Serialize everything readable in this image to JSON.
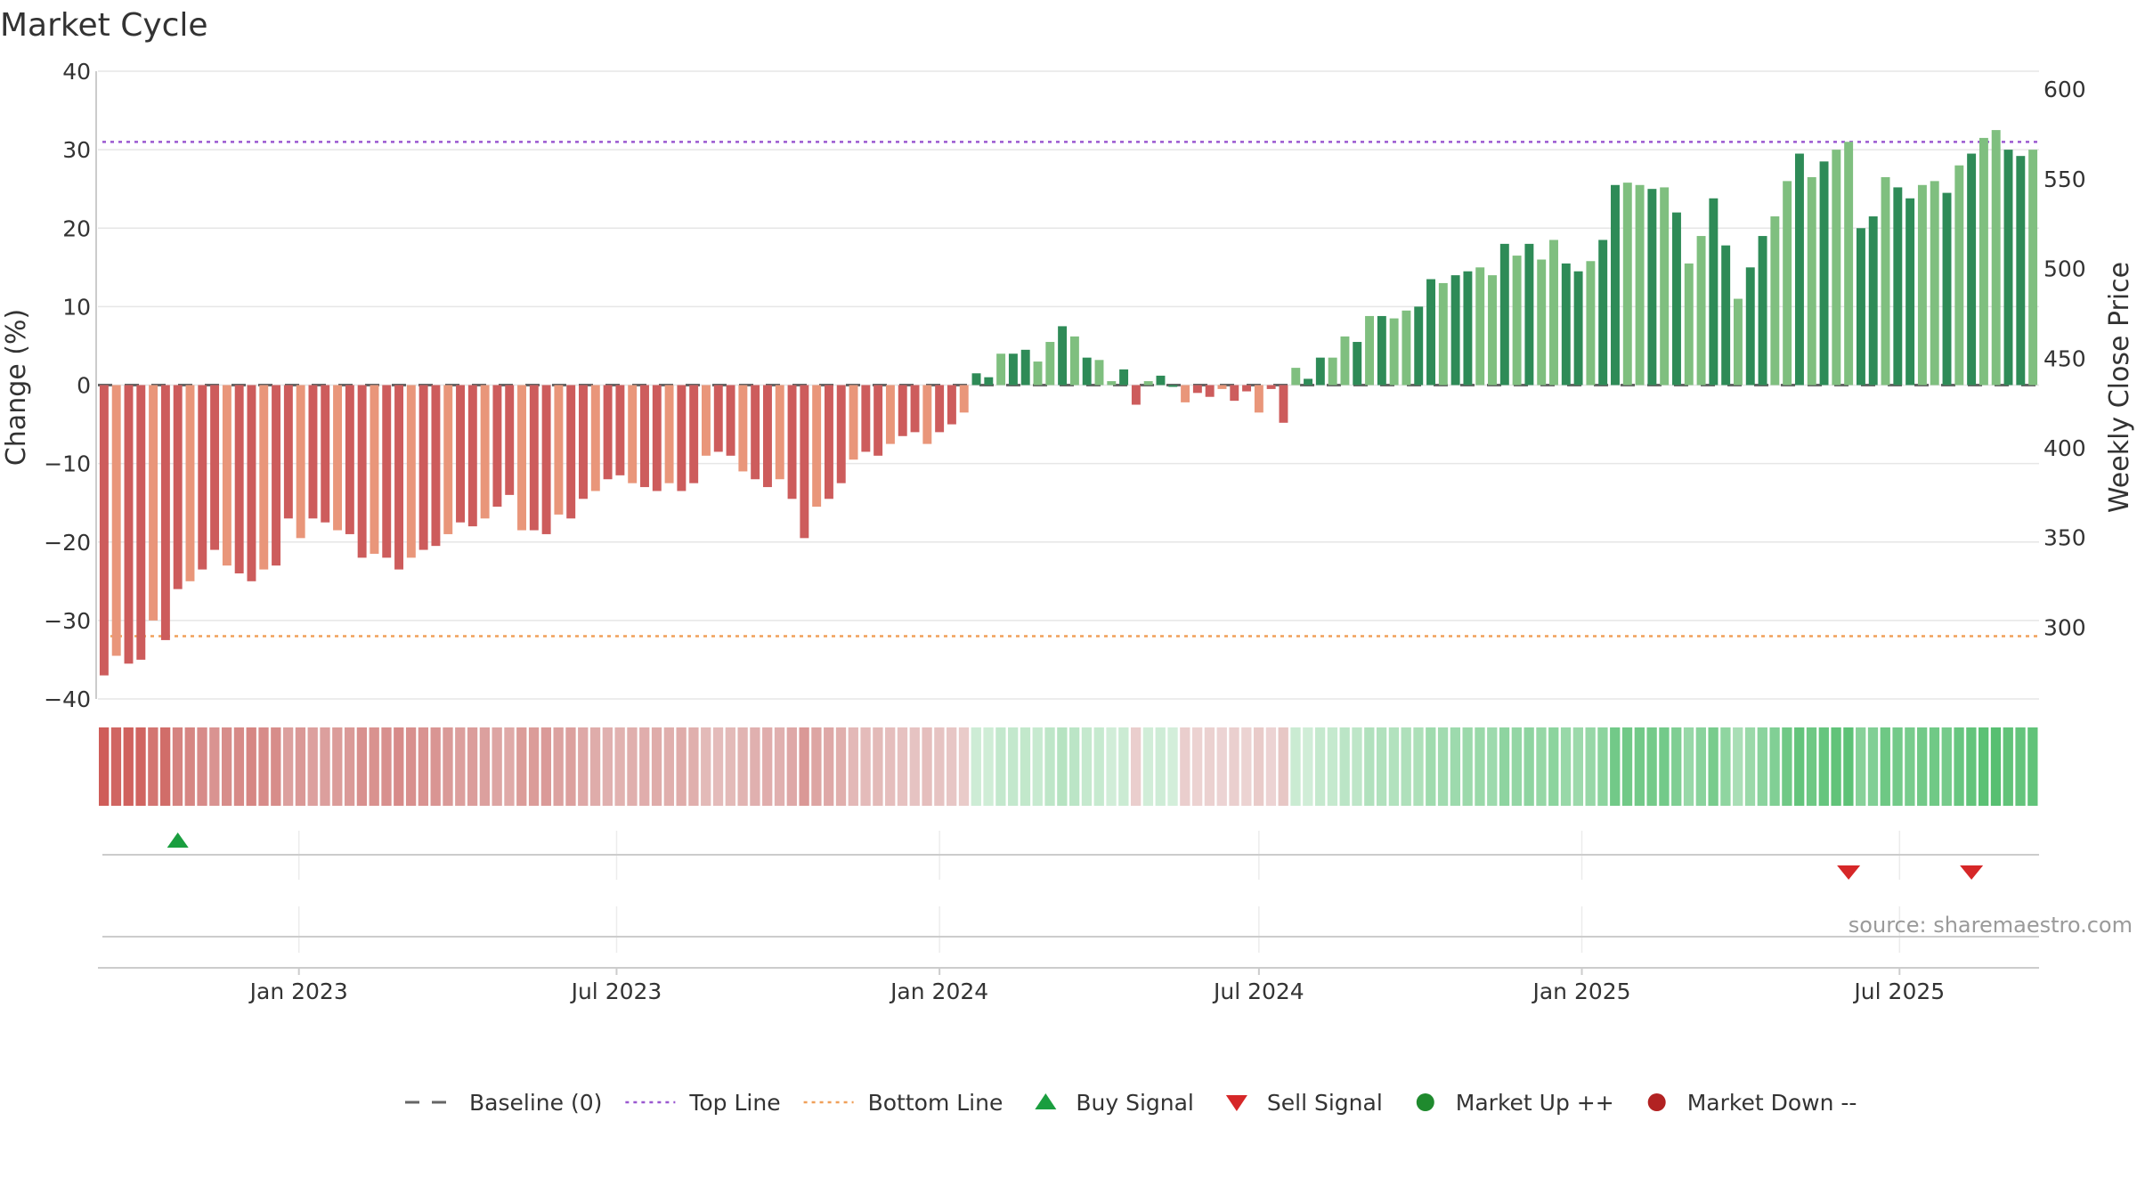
{
  "chart_data": {
    "type": "bar",
    "title": "Market Cycle",
    "ylabel_left": "Change (%)",
    "ylabel_right": "Weekly Close Price",
    "source": "source: sharemaestro.com",
    "y_left": {
      "ylim": [
        -40,
        40
      ],
      "ticks": [
        40,
        30,
        20,
        10,
        0,
        -10,
        -20,
        -30,
        -40
      ],
      "tick_labels": [
        "40",
        "30",
        "20",
        "10",
        "0",
        "−10",
        "−20",
        "−30",
        "−40"
      ]
    },
    "y_right": {
      "ylim": [
        260,
        610
      ],
      "ticks": [
        600,
        550,
        500,
        450,
        400,
        350,
        300
      ],
      "tick_labels": [
        "600",
        "550",
        "500",
        "450",
        "400",
        "350",
        "300"
      ]
    },
    "x_axis": {
      "start_date": "2022-09-12",
      "interval": "weekly",
      "ticks": [
        {
          "date": "2023-01-01",
          "label": "Jan 2023"
        },
        {
          "date": "2023-07-01",
          "label": "Jul 2023"
        },
        {
          "date": "2024-01-01",
          "label": "Jan 2024"
        },
        {
          "date": "2024-07-01",
          "label": "Jul 2024"
        },
        {
          "date": "2025-01-01",
          "label": "Jan 2025"
        },
        {
          "date": "2025-07-01",
          "label": "Jul 2025"
        }
      ]
    },
    "lines": {
      "baseline": 0,
      "top": 31,
      "bottom": -32
    },
    "change_pct": [
      -37,
      -34.5,
      -35.5,
      -35,
      -30,
      -32.5,
      -26,
      -25,
      -23.5,
      -21,
      -23,
      -24,
      -25,
      -23.5,
      -23,
      -17,
      -19.5,
      -17,
      -17.5,
      -18.5,
      -19,
      -22,
      -21.5,
      -22,
      -23.5,
      -22,
      -21,
      -20.5,
      -19,
      -17.5,
      -18,
      -17,
      -15.5,
      -14,
      -18.5,
      -18.5,
      -19,
      -16.5,
      -17,
      -14.5,
      -13.5,
      -12,
      -11.5,
      -12.5,
      -13,
      -13.5,
      -12.5,
      -13.5,
      -12.5,
      -9,
      -8.5,
      -9,
      -11,
      -12,
      -13,
      -12,
      -14.5,
      -19.5,
      -15.5,
      -14.5,
      -12.5,
      -9.5,
      -8.5,
      -9,
      -7.5,
      -6.5,
      -6,
      -7.5,
      -6,
      -5,
      -3.5,
      1.5,
      1,
      4,
      4,
      4.5,
      3,
      5.5,
      7.5,
      6.2,
      3.5,
      3.2,
      0.5,
      2,
      -2.5,
      0.5,
      1.2,
      0,
      -2.2,
      -1,
      -1.5,
      -0.5,
      -2,
      -0.8,
      -3.5,
      -0.5,
      -4.8,
      2.2,
      0.8,
      3.5,
      3.5,
      6.2,
      5.5,
      8.8,
      8.8,
      8.5,
      9.5,
      10,
      13.5,
      13,
      14,
      14.5,
      15,
      14,
      18,
      16.5,
      18,
      16,
      18.5,
      15.5,
      14.5,
      15.8,
      18.5,
      25.5,
      25.8,
      25.5,
      25,
      25.2,
      22,
      15.5,
      19,
      23.8,
      17.8,
      11,
      15,
      19,
      21.5,
      26,
      29.5,
      26.5,
      28.5,
      30,
      31,
      20,
      21.5,
      26.5,
      25.2,
      23.8,
      25.5,
      26,
      24.5,
      28,
      29.5,
      31.5,
      32.5,
      30,
      29.2,
      30
    ],
    "buy_signals": [
      "2022-10-24"
    ],
    "sell_signals": [
      "2025-06-02",
      "2025-08-11"
    ],
    "legend": [
      {
        "label": "Baseline (0)",
        "marker": "dash",
        "color": "#666666"
      },
      {
        "label": "Top Line",
        "marker": "dotted",
        "color": "#9b59d0"
      },
      {
        "label": "Bottom Line",
        "marker": "dotted",
        "color": "#f0a05a"
      },
      {
        "label": "Buy Signal",
        "marker": "triangle-up",
        "color": "#1a9e3f"
      },
      {
        "label": "Sell Signal",
        "marker": "triangle-down",
        "color": "#d62728"
      },
      {
        "label": "Market Up ++",
        "marker": "circle",
        "color": "#1f8a2e"
      },
      {
        "label": "Market Down --",
        "marker": "circle",
        "color": "#b22222"
      }
    ],
    "colors": {
      "up_strong": "#2e8b57",
      "up_light": "#7fbf7f",
      "down_strong": "#cd5c5c",
      "down_light": "#e9967a",
      "grid": "#e6e6e6",
      "axis": "#cccccc"
    }
  }
}
